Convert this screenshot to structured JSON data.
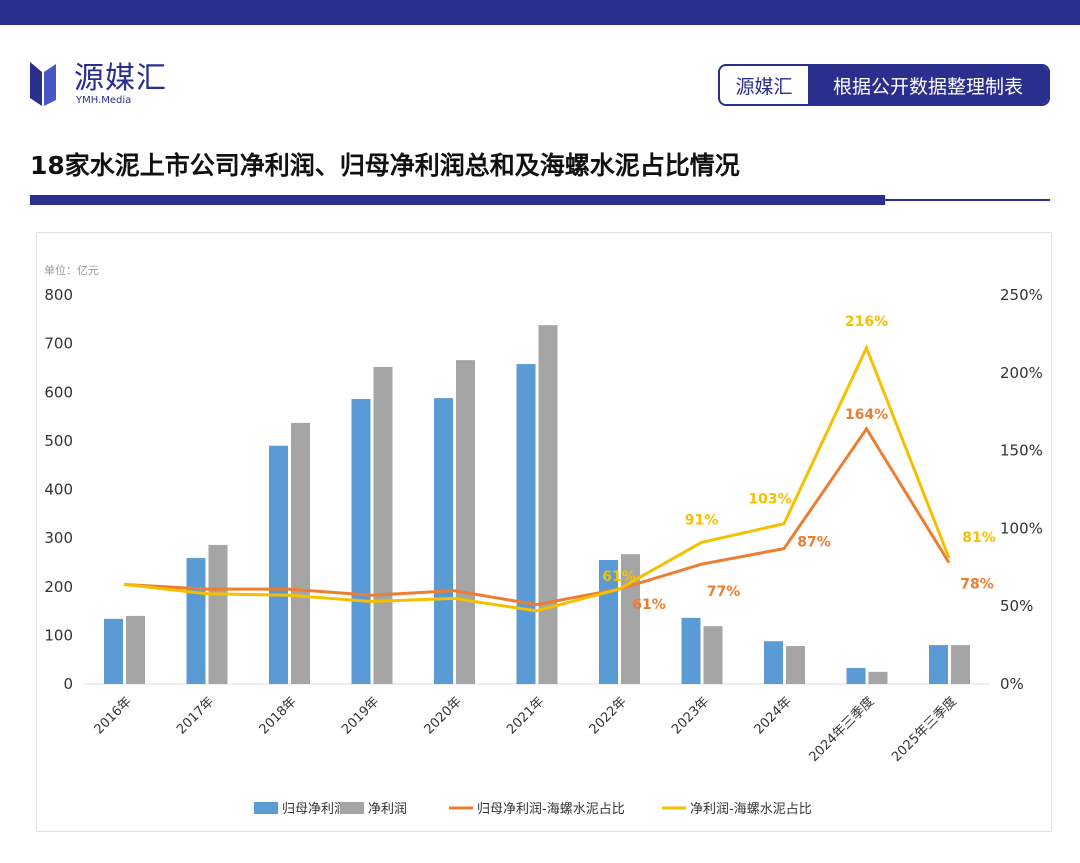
{
  "header": {
    "logo_cn": "源媒汇",
    "logo_en": "YMH.Media",
    "badge_brand": "源媒汇",
    "badge_note": "根据公开数据整理制表",
    "title": "18家水泥上市公司净利润、归母净利润总和及海螺水泥占比情况"
  },
  "colors": {
    "brand": "#2a2e8c",
    "bar1": "#5b9bd5",
    "bar2": "#a5a5a5",
    "line1": "#ed7d31",
    "line2": "#f5c000"
  },
  "chart_data": {
    "type": "bar+line",
    "unit_label": "单位：亿元",
    "categories": [
      "2016年",
      "2017年",
      "2018年",
      "2019年",
      "2020年",
      "2021年",
      "2022年",
      "2023年",
      "2024年",
      "2024年三季度",
      "2025年三季度"
    ],
    "y_left": {
      "range": [
        0,
        800
      ],
      "ticks": [
        "0",
        "100",
        "200",
        "300",
        "400",
        "500",
        "600",
        "700",
        "800"
      ]
    },
    "y_right": {
      "range": [
        0,
        250
      ],
      "ticks": [
        "0%",
        "50%",
        "100%",
        "150%",
        "200%",
        "250%"
      ]
    },
    "series": [
      {
        "name": "归母净利润",
        "type": "bar",
        "axis": "left",
        "values": [
          134,
          259,
          490,
          586,
          588,
          658,
          255,
          136,
          88,
          33,
          80
        ]
      },
      {
        "name": "净利润",
        "type": "bar",
        "axis": "left",
        "values": [
          140,
          286,
          537,
          652,
          666,
          738,
          267,
          119,
          78,
          25,
          80
        ]
      },
      {
        "name": "归母净利润-海螺水泥占比",
        "type": "line",
        "axis": "right",
        "values": [
          64,
          61,
          61,
          57,
          60,
          51,
          61,
          77,
          87,
          164,
          78
        ],
        "labels": [
          "",
          "",
          "",
          "",
          "",
          "",
          "61%",
          "77%",
          "87%",
          "164%",
          "78%"
        ]
      },
      {
        "name": "净利润-海螺水泥占比",
        "type": "line",
        "axis": "right",
        "values": [
          64,
          58,
          57,
          53,
          55,
          47,
          61,
          91,
          103,
          216,
          81
        ],
        "labels": [
          "",
          "",
          "",
          "",
          "",
          "",
          "61%",
          "91%",
          "103%",
          "216%",
          "81%"
        ]
      }
    ],
    "legend": "bottom",
    "grid": false
  }
}
